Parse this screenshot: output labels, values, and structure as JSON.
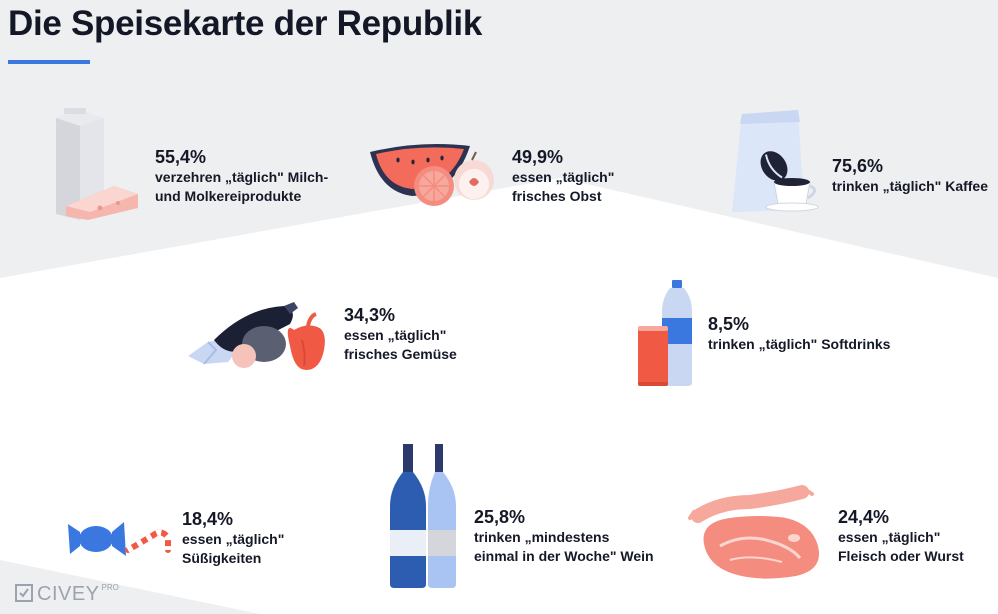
{
  "page": {
    "title": "Die Speisekarte der Republik",
    "accent_color": "#3a78e0",
    "logo": {
      "name": "CIVEY",
      "suffix": "PRO"
    }
  },
  "chart_data": {
    "type": "infographic",
    "title": "Die Speisekarte der Republik",
    "items": [
      {
        "id": "milk",
        "value": 55.4,
        "value_label": "55,4%",
        "lines": [
          "verzehren „täglich\" Milch-",
          "und Molkereiprodukte"
        ],
        "icon": "milk-carton-cheese-icon"
      },
      {
        "id": "fruit",
        "value": 49.9,
        "value_label": "49,9%",
        "lines": [
          "essen „täglich\"",
          "frisches Obst"
        ],
        "icon": "watermelon-grapefruit-apple-icon"
      },
      {
        "id": "coffee",
        "value": 75.6,
        "value_label": "75,6%",
        "lines": [
          "trinken „täglich\" Kaffee"
        ],
        "icon": "coffee-bag-cup-icon"
      },
      {
        "id": "veg",
        "value": 34.3,
        "value_label": "34,3%",
        "lines": [
          "essen „täglich\"",
          "frisches Gemüse"
        ],
        "icon": "eggplant-pepper-icon"
      },
      {
        "id": "softdrinks",
        "value": 8.5,
        "value_label": "8,5%",
        "lines": [
          "trinken „täglich\" Softdrinks"
        ],
        "icon": "soda-can-bottle-icon"
      },
      {
        "id": "sweets",
        "value": 18.4,
        "value_label": "18,4%",
        "lines": [
          "essen „täglich\"",
          "Süßigkeiten"
        ],
        "icon": "candy-icon"
      },
      {
        "id": "wine",
        "value": 25.8,
        "value_label": "25,8%",
        "lines": [
          "trinken „mindestens",
          "einmal in der Woche\" Wein"
        ],
        "icon": "wine-bottles-icon"
      },
      {
        "id": "meat",
        "value": 24.4,
        "value_label": "24,4%",
        "lines": [
          "essen „täglich\"",
          "Fleisch oder Wurst"
        ],
        "icon": "sausage-meat-icon"
      }
    ]
  }
}
